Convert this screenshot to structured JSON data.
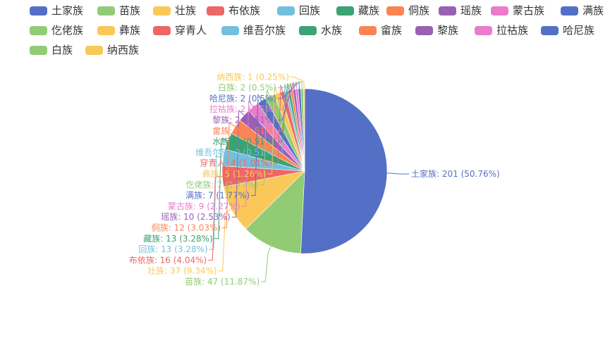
{
  "chart_data": {
    "type": "pie",
    "legend_position": "top",
    "categories": [
      "土家族",
      "苗族",
      "壮族",
      "布依族",
      "回族",
      "藏族",
      "侗族",
      "瑶族",
      "蒙古族",
      "满族",
      "仡佬族",
      "彝族",
      "穿青人",
      "维吾尔族",
      "水族",
      "畲族",
      "黎族",
      "拉祜族",
      "哈尼族",
      "白族",
      "纳西族"
    ],
    "values": [
      201,
      47,
      37,
      16,
      13,
      13,
      12,
      10,
      9,
      7,
      7,
      5,
      4,
      2,
      2,
      2,
      2,
      2,
      2,
      2,
      1
    ],
    "labels": [
      "土家族: 201 (50.76%)",
      "苗族: 47 (11.87%)",
      "壮族: 37 (9.34%)",
      "布依族: 16 (4.04%)",
      "回族: 13 (3.28%)",
      "藏族: 13 (3.28%)",
      "侗族: 12 (3.03%)",
      "瑶族: 10 (2.53%)",
      "蒙古族: 9 (2.27%)",
      "满族: 7 (1.77%)",
      "仡佬族: 7 (1.77%)",
      "彝族: 5 (1.26%)",
      "穿青人: 4 (1.01%)",
      "维吾尔族: 2 (0.51%)",
      "水族: 2 (0.51%)",
      "畲族: 2 (0.51%)",
      "黎族: 2 (0.51%)",
      "拉祜族: 2 (0.5%)",
      "哈尼族: 2 (0.5%)",
      "白族: 2 (0.5%)",
      "纳西族: 1 (0.25%)"
    ],
    "colors": [
      "#5470c6",
      "#91cc75",
      "#fac858",
      "#ee6666",
      "#73c0de",
      "#3ba272",
      "#fc8452",
      "#9a60b4",
      "#ea7ccc",
      "#5470c6",
      "#91cc75",
      "#fac858",
      "#ee6666",
      "#73c0de",
      "#3ba272",
      "#fc8452",
      "#9a60b4",
      "#ea7ccc",
      "#5470c6",
      "#91cc75",
      "#fac858"
    ]
  }
}
